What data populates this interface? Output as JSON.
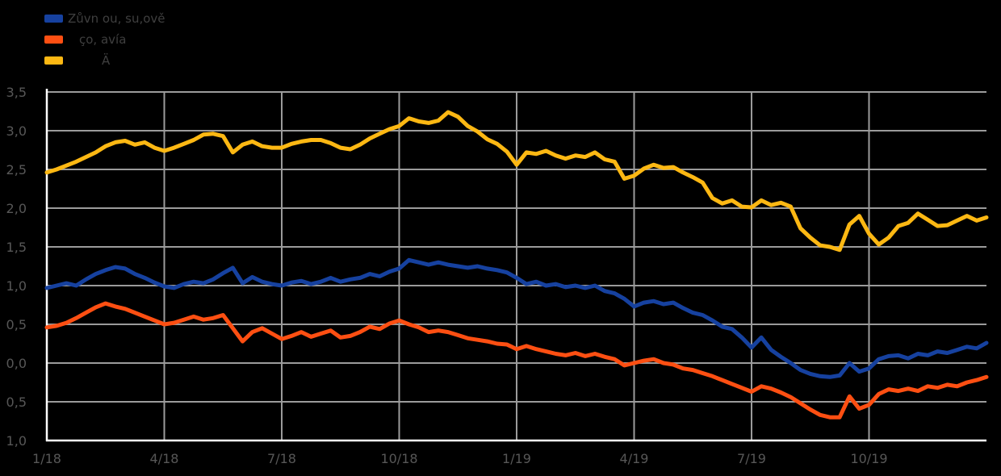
{
  "app": {
    "background": "#000000"
  },
  "colors": {
    "background": "#000000",
    "gridline": "#9b9b9b",
    "axis_line": "#ffffff",
    "tick_label": "#575757",
    "legend_text": "#3f3f3f",
    "series_blue": "#16419f",
    "series_orange": "#fe4f12",
    "series_yellow": "#fdb813"
  },
  "legend": {
    "position": "top-left",
    "items": [
      {
        "label": "Zůvn ou, su,ově",
        "color": "#16419f",
        "swatch": "blue-swatch"
      },
      {
        "label": "ço, avía",
        "color": "#fe4f12",
        "swatch": "orange-swatch"
      },
      {
        "label": "Ä",
        "color": "#fdb813",
        "swatch": "yellow-swatch"
      }
    ]
  },
  "chart_data": {
    "type": "line",
    "title": "",
    "xlabel": "",
    "ylabel": "",
    "grid": true,
    "legend_position": "top-left",
    "x_axis": {
      "unit": "month/year",
      "tick_labels": [
        "1/18",
        "4/18",
        "7/18",
        "10/18",
        "1/19",
        "4/19",
        "7/19",
        "10/19"
      ],
      "tick_months": [
        0,
        3,
        6,
        9,
        12,
        15,
        18,
        21
      ],
      "range_months": [
        0,
        24
      ]
    },
    "y_axis": {
      "tick_labels_displayed": [
        "3,5",
        "3,0",
        "2,5",
        "2,0",
        "1,5",
        "1,0",
        "0,5",
        "0,0",
        "0,5",
        "1,0"
      ],
      "tick_values": [
        3.5,
        3.0,
        2.5,
        2.0,
        1.5,
        1.0,
        0.5,
        0.0,
        -0.5,
        -1.0
      ],
      "range": [
        -1.0,
        3.5
      ],
      "decimal_separator": ","
    },
    "x": {
      "start": 0,
      "step": 0.25,
      "count": 97,
      "unit": "months-since-1/18"
    },
    "series": [
      {
        "name": "Zůvn ou, su,ově",
        "color": "#16419f",
        "values": [
          0.97,
          1.0,
          1.03,
          1.0,
          1.08,
          1.15,
          1.2,
          1.24,
          1.22,
          1.15,
          1.1,
          1.04,
          0.99,
          0.97,
          1.02,
          1.05,
          1.03,
          1.08,
          1.16,
          1.23,
          1.03,
          1.11,
          1.05,
          1.02,
          1.0,
          1.04,
          1.06,
          1.02,
          1.05,
          1.1,
          1.05,
          1.08,
          1.1,
          1.15,
          1.12,
          1.18,
          1.22,
          1.33,
          1.3,
          1.27,
          1.3,
          1.27,
          1.25,
          1.23,
          1.25,
          1.22,
          1.2,
          1.17,
          1.1,
          1.02,
          1.05,
          1.0,
          1.02,
          0.98,
          1.0,
          0.97,
          1.0,
          0.93,
          0.9,
          0.83,
          0.73,
          0.78,
          0.8,
          0.76,
          0.78,
          0.71,
          0.65,
          0.62,
          0.55,
          0.47,
          0.44,
          0.33,
          0.2,
          0.33,
          0.17,
          0.08,
          0.0,
          -0.09,
          -0.14,
          -0.17,
          -0.18,
          -0.16,
          0.0,
          -0.11,
          -0.07,
          0.05,
          0.09,
          0.1,
          0.06,
          0.12,
          0.1,
          0.15,
          0.13,
          0.17,
          0.21,
          0.19,
          0.26
        ]
      },
      {
        "name": "ço, avía",
        "color": "#fe4f12",
        "values": [
          0.46,
          0.48,
          0.52,
          0.58,
          0.65,
          0.72,
          0.77,
          0.73,
          0.7,
          0.65,
          0.6,
          0.55,
          0.5,
          0.52,
          0.56,
          0.6,
          0.56,
          0.58,
          0.62,
          0.45,
          0.28,
          0.4,
          0.45,
          0.38,
          0.31,
          0.35,
          0.4,
          0.34,
          0.38,
          0.42,
          0.33,
          0.35,
          0.4,
          0.47,
          0.44,
          0.51,
          0.55,
          0.5,
          0.46,
          0.4,
          0.42,
          0.4,
          0.36,
          0.32,
          0.3,
          0.28,
          0.25,
          0.24,
          0.18,
          0.22,
          0.18,
          0.15,
          0.12,
          0.1,
          0.13,
          0.09,
          0.12,
          0.08,
          0.05,
          -0.03,
          0.0,
          0.03,
          0.05,
          0.0,
          -0.02,
          -0.07,
          -0.09,
          -0.13,
          -0.17,
          -0.22,
          -0.27,
          -0.32,
          -0.37,
          -0.3,
          -0.33,
          -0.38,
          -0.44,
          -0.52,
          -0.6,
          -0.67,
          -0.7,
          -0.7,
          -0.43,
          -0.59,
          -0.54,
          -0.4,
          -0.34,
          -0.36,
          -0.33,
          -0.36,
          -0.3,
          -0.32,
          -0.28,
          -0.3,
          -0.25,
          -0.22,
          -0.18
        ]
      },
      {
        "name": "Ä",
        "color": "#fdb813",
        "values": [
          2.46,
          2.5,
          2.55,
          2.6,
          2.66,
          2.72,
          2.8,
          2.85,
          2.87,
          2.82,
          2.85,
          2.78,
          2.74,
          2.78,
          2.83,
          2.88,
          2.95,
          2.96,
          2.93,
          2.72,
          2.82,
          2.86,
          2.8,
          2.78,
          2.78,
          2.83,
          2.86,
          2.88,
          2.88,
          2.84,
          2.78,
          2.76,
          2.82,
          2.9,
          2.96,
          3.02,
          3.06,
          3.16,
          3.12,
          3.1,
          3.13,
          3.24,
          3.18,
          3.06,
          2.99,
          2.89,
          2.83,
          2.73,
          2.56,
          2.72,
          2.7,
          2.74,
          2.68,
          2.64,
          2.68,
          2.66,
          2.72,
          2.63,
          2.6,
          2.38,
          2.42,
          2.51,
          2.56,
          2.52,
          2.53,
          2.46,
          2.4,
          2.33,
          2.13,
          2.06,
          2.1,
          2.02,
          2.01,
          2.1,
          2.04,
          2.07,
          2.02,
          1.74,
          1.62,
          1.52,
          1.5,
          1.46,
          1.79,
          1.9,
          1.67,
          1.53,
          1.62,
          1.77,
          1.81,
          1.93,
          1.85,
          1.77,
          1.78,
          1.84,
          1.9,
          1.84,
          1.88
        ]
      }
    ]
  }
}
